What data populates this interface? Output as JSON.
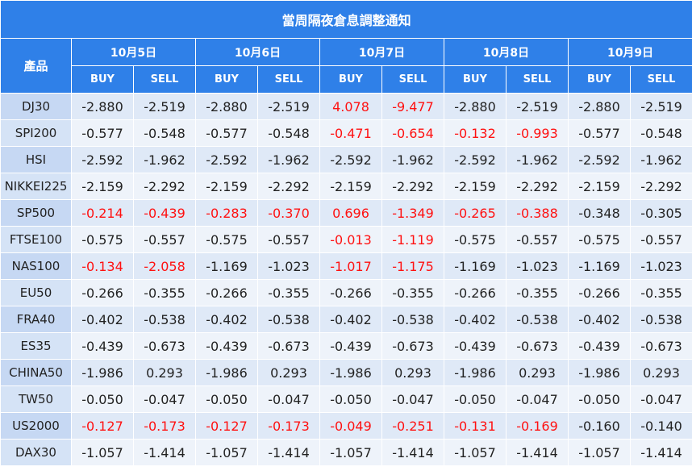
{
  "title": "當周隔夜倉息調整通知",
  "header": {
    "product_label": "產品",
    "dates": [
      "10月5日",
      "10月6日",
      "10月7日",
      "10月8日",
      "10月9日"
    ],
    "buy_label": "BUY",
    "sell_label": "SELL"
  },
  "colors": {
    "header_bg": "#2f80e8",
    "row_odd_bg": "#dfe9f7",
    "row_even_bg": "#eef3fa",
    "product_bg": "#c6d8f3",
    "highlight_text": "#ff1111",
    "normal_text": "#222222"
  },
  "rows": [
    {
      "product": "DJ30",
      "values": [
        "-2.880",
        "-2.519",
        "-2.880",
        "-2.519",
        "4.078",
        "-9.477",
        "-2.880",
        "-2.519",
        "-2.880",
        "-2.519"
      ],
      "highlight": [
        false,
        false,
        false,
        false,
        true,
        true,
        false,
        false,
        false,
        false
      ]
    },
    {
      "product": "SPI200",
      "values": [
        "-0.577",
        "-0.548",
        "-0.577",
        "-0.548",
        "-0.471",
        "-0.654",
        "-0.132",
        "-0.993",
        "-0.577",
        "-0.548"
      ],
      "highlight": [
        false,
        false,
        false,
        false,
        true,
        true,
        true,
        true,
        false,
        false
      ]
    },
    {
      "product": "HSI",
      "values": [
        "-2.592",
        "-1.962",
        "-2.592",
        "-1.962",
        "-2.592",
        "-1.962",
        "-2.592",
        "-1.962",
        "-2.592",
        "-1.962"
      ],
      "highlight": [
        false,
        false,
        false,
        false,
        false,
        false,
        false,
        false,
        false,
        false
      ]
    },
    {
      "product": "NIKKEI225",
      "values": [
        "-2.159",
        "-2.292",
        "-2.159",
        "-2.292",
        "-2.159",
        "-2.292",
        "-2.159",
        "-2.292",
        "-2.159",
        "-2.292"
      ],
      "highlight": [
        false,
        false,
        false,
        false,
        false,
        false,
        false,
        false,
        false,
        false
      ]
    },
    {
      "product": "SP500",
      "values": [
        "-0.214",
        "-0.439",
        "-0.283",
        "-0.370",
        "0.696",
        "-1.349",
        "-0.265",
        "-0.388",
        "-0.348",
        "-0.305"
      ],
      "highlight": [
        true,
        true,
        true,
        true,
        true,
        true,
        true,
        true,
        false,
        false
      ]
    },
    {
      "product": "FTSE100",
      "values": [
        "-0.575",
        "-0.557",
        "-0.575",
        "-0.557",
        "-0.013",
        "-1.119",
        "-0.575",
        "-0.557",
        "-0.575",
        "-0.557"
      ],
      "highlight": [
        false,
        false,
        false,
        false,
        true,
        true,
        false,
        false,
        false,
        false
      ]
    },
    {
      "product": "NAS100",
      "values": [
        "-0.134",
        "-2.058",
        "-1.169",
        "-1.023",
        "-1.017",
        "-1.175",
        "-1.169",
        "-1.023",
        "-1.169",
        "-1.023"
      ],
      "highlight": [
        true,
        true,
        false,
        false,
        true,
        true,
        false,
        false,
        false,
        false
      ]
    },
    {
      "product": "EU50",
      "values": [
        "-0.266",
        "-0.355",
        "-0.266",
        "-0.355",
        "-0.266",
        "-0.355",
        "-0.266",
        "-0.355",
        "-0.266",
        "-0.355"
      ],
      "highlight": [
        false,
        false,
        false,
        false,
        false,
        false,
        false,
        false,
        false,
        false
      ]
    },
    {
      "product": "FRA40",
      "values": [
        "-0.402",
        "-0.538",
        "-0.402",
        "-0.538",
        "-0.402",
        "-0.538",
        "-0.402",
        "-0.538",
        "-0.402",
        "-0.538"
      ],
      "highlight": [
        false,
        false,
        false,
        false,
        false,
        false,
        false,
        false,
        false,
        false
      ]
    },
    {
      "product": "ES35",
      "values": [
        "-0.439",
        "-0.673",
        "-0.439",
        "-0.673",
        "-0.439",
        "-0.673",
        "-0.439",
        "-0.673",
        "-0.439",
        "-0.673"
      ],
      "highlight": [
        false,
        false,
        false,
        false,
        false,
        false,
        false,
        false,
        false,
        false
      ]
    },
    {
      "product": "CHINA50",
      "values": [
        "-1.986",
        "0.293",
        "-1.986",
        "0.293",
        "-1.986",
        "0.293",
        "-1.986",
        "0.293",
        "-1.986",
        "0.293"
      ],
      "highlight": [
        false,
        false,
        false,
        false,
        false,
        false,
        false,
        false,
        false,
        false
      ]
    },
    {
      "product": "TW50",
      "values": [
        "-0.050",
        "-0.047",
        "-0.050",
        "-0.047",
        "-0.050",
        "-0.047",
        "-0.050",
        "-0.047",
        "-0.050",
        "-0.047"
      ],
      "highlight": [
        false,
        false,
        false,
        false,
        false,
        false,
        false,
        false,
        false,
        false
      ]
    },
    {
      "product": "US2000",
      "values": [
        "-0.127",
        "-0.173",
        "-0.127",
        "-0.173",
        "-0.049",
        "-0.251",
        "-0.131",
        "-0.169",
        "-0.160",
        "-0.140"
      ],
      "highlight": [
        true,
        true,
        true,
        true,
        true,
        true,
        true,
        true,
        false,
        false
      ]
    },
    {
      "product": "DAX30",
      "values": [
        "-1.057",
        "-1.414",
        "-1.057",
        "-1.414",
        "-1.057",
        "-1.414",
        "-1.057",
        "-1.414",
        "-1.057",
        "-1.414"
      ],
      "highlight": [
        false,
        false,
        false,
        false,
        false,
        false,
        false,
        false,
        false,
        false
      ]
    }
  ]
}
